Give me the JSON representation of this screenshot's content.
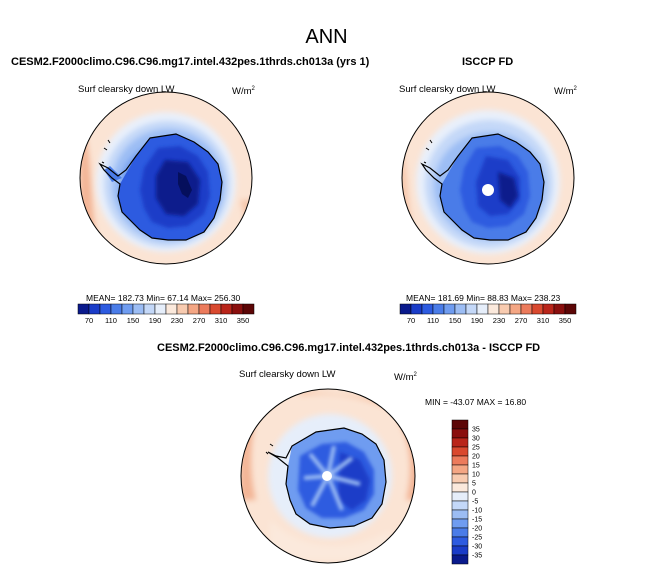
{
  "title": "ANN",
  "chart_data": [
    {
      "type": "heatmap",
      "projection": "south-polar-stereographic",
      "title": "CESM2.F2000climo.C96.C96.mg17.intel.432pes.1thrds.ch013a (yrs 1)",
      "variable": "Surf clearsky down LW",
      "units_base": "W/m",
      "units_exp": "2",
      "stats": {
        "mean": "182.73",
        "min": "67.14",
        "max": "256.30"
      },
      "stats_text": "MEAN= 182.73  Min=  67.14  Max= 256.30",
      "colorbar": {
        "orientation": "horizontal",
        "levels": [
          70,
          90,
          110,
          130,
          150,
          170,
          190,
          210,
          230,
          250,
          270,
          290,
          310,
          330,
          350
        ],
        "labels": [
          "70",
          "110",
          "150",
          "190",
          "230",
          "270",
          "310",
          "350"
        ],
        "colors": [
          "#0a1a8c",
          "#1a3cc8",
          "#2d5be0",
          "#4a7ce8",
          "#6f9cf0",
          "#9cbdf4",
          "#c4d8f8",
          "#e6eefa",
          "#fbe9dc",
          "#f8cbb0",
          "#f4a684",
          "#ec7b5c",
          "#d9492f",
          "#b9251a",
          "#8a0f0e",
          "#5c0606"
        ]
      }
    },
    {
      "type": "heatmap",
      "projection": "south-polar-stereographic",
      "title": "ISCCP FD",
      "variable": "Surf clearsky down LW",
      "units_base": "W/m",
      "units_exp": "2",
      "stats": {
        "mean": "181.69",
        "min": "88.83",
        "max": "238.23"
      },
      "stats_text": "MEAN= 181.69  Min=  88.83  Max= 238.23",
      "colorbar": {
        "orientation": "horizontal",
        "levels": [
          70,
          90,
          110,
          130,
          150,
          170,
          190,
          210,
          230,
          250,
          270,
          290,
          310,
          330,
          350
        ],
        "labels": [
          "70",
          "110",
          "150",
          "190",
          "230",
          "270",
          "310",
          "350"
        ],
        "colors": [
          "#0a1a8c",
          "#1a3cc8",
          "#2d5be0",
          "#4a7ce8",
          "#6f9cf0",
          "#9cbdf4",
          "#c4d8f8",
          "#e6eefa",
          "#fbe9dc",
          "#f8cbb0",
          "#f4a684",
          "#ec7b5c",
          "#d9492f",
          "#b9251a",
          "#8a0f0e",
          "#5c0606"
        ]
      }
    },
    {
      "type": "heatmap",
      "projection": "south-polar-stereographic",
      "title": "CESM2.F2000climo.C96.C96.mg17.intel.432pes.1thrds.ch013a - ISCCP FD",
      "variable": "Surf clearsky down LW",
      "units_base": "W/m",
      "units_exp": "2",
      "stats": {
        "min": "-43.07",
        "max": "16.80"
      },
      "stats_text": "MIN = -43.07  MAX =  16.80",
      "colorbar": {
        "orientation": "vertical",
        "levels": [
          -35,
          -30,
          -25,
          -20,
          -15,
          -10,
          -5,
          0,
          5,
          10,
          15,
          20,
          25,
          30,
          35
        ],
        "labels": [
          "35",
          "30",
          "25",
          "20",
          "15",
          "10",
          "5",
          "0",
          "-5",
          "-10",
          "-15",
          "-20",
          "-25",
          "-30",
          "-35"
        ],
        "colors": [
          "#0a1a8c",
          "#1a3cc8",
          "#2d5be0",
          "#4a7ce8",
          "#6f9cf0",
          "#9cbdf4",
          "#c4d8f8",
          "#e6eefa",
          "#fbe9dc",
          "#f8cbb0",
          "#f4a684",
          "#ec7b5c",
          "#d9492f",
          "#b9251a",
          "#8a0f0e",
          "#5c0606"
        ]
      }
    }
  ]
}
